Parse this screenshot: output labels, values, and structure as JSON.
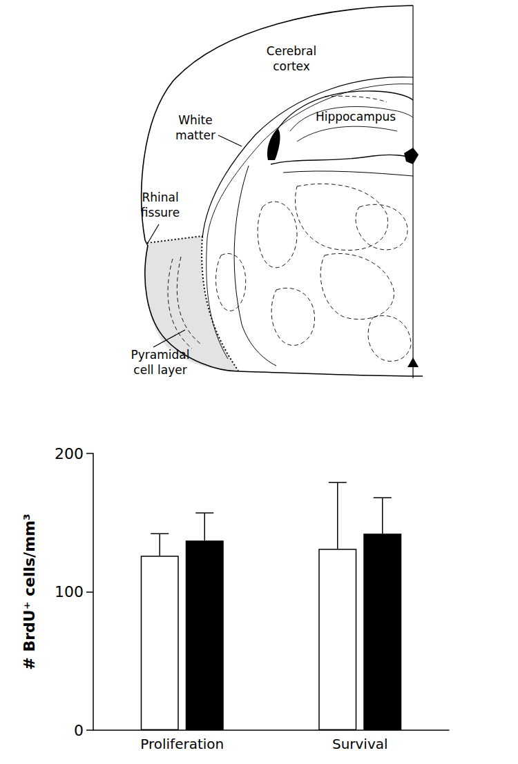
{
  "diagram": {
    "labels": [
      "Cerebral cortex",
      "White matter",
      "Hippocampus",
      "Rhinal fissure",
      "Pyramidal cell layer"
    ]
  },
  "chart_data": {
    "type": "bar",
    "categories": [
      "Proliferation",
      "Survival"
    ],
    "ylabel": "# BrdU⁺ cells/mm³",
    "ylim": [
      0,
      200
    ],
    "yticks": [
      0,
      100,
      200
    ],
    "series": [
      {
        "color": "#ffffff",
        "values": [
          126,
          131
        ],
        "errors": [
          16,
          48
        ]
      },
      {
        "color": "#000000",
        "values": [
          137,
          142
        ],
        "errors": [
          20,
          26
        ]
      }
    ]
  }
}
